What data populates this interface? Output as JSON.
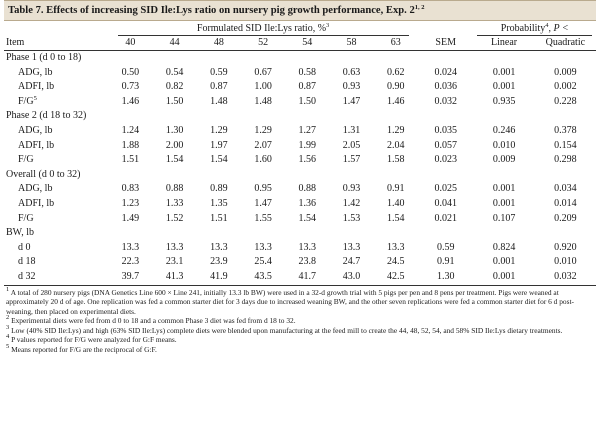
{
  "title": {
    "text": "Table 7. Effects of increasing SID Ile:Lys ratio on nursery pig growth performance, Exp. 2",
    "sup": "1, 2"
  },
  "header": {
    "span_label": "Formulated SID Ile:Lys ratio, %",
    "span_sup": "3",
    "prob_label": "Probability",
    "prob_sup": "4",
    "prob_suffix": ", P <",
    "item": "Item",
    "ratios": [
      "40",
      "44",
      "48",
      "52",
      "54",
      "58",
      "63"
    ],
    "sem": "SEM",
    "linear": "Linear",
    "quadratic": "Quadratic"
  },
  "groups": [
    {
      "label": "Phase 1 (d 0 to 18)",
      "rows": [
        {
          "item": "ADG, lb",
          "sup": "",
          "values": [
            "0.50",
            "0.54",
            "0.59",
            "0.67",
            "0.58",
            "0.63",
            "0.62"
          ],
          "sem": "0.024",
          "linear": "0.001",
          "quadratic": "0.009"
        },
        {
          "item": "ADFI, lb",
          "sup": "",
          "values": [
            "0.73",
            "0.82",
            "0.87",
            "1.00",
            "0.87",
            "0.93",
            "0.90"
          ],
          "sem": "0.036",
          "linear": "0.001",
          "quadratic": "0.002"
        },
        {
          "item": "F/G",
          "sup": "5",
          "values": [
            "1.46",
            "1.50",
            "1.48",
            "1.48",
            "1.50",
            "1.47",
            "1.46"
          ],
          "sem": "0.032",
          "linear": "0.935",
          "quadratic": "0.228"
        }
      ]
    },
    {
      "label": "Phase 2 (d 18 to 32)",
      "rows": [
        {
          "item": "ADG, lb",
          "sup": "",
          "values": [
            "1.24",
            "1.30",
            "1.29",
            "1.29",
            "1.27",
            "1.31",
            "1.29"
          ],
          "sem": "0.035",
          "linear": "0.246",
          "quadratic": "0.378"
        },
        {
          "item": "ADFI, lb",
          "sup": "",
          "values": [
            "1.88",
            "2.00",
            "1.97",
            "2.07",
            "1.99",
            "2.05",
            "2.04"
          ],
          "sem": "0.057",
          "linear": "0.010",
          "quadratic": "0.154"
        },
        {
          "item": "F/G",
          "sup": "",
          "values": [
            "1.51",
            "1.54",
            "1.54",
            "1.60",
            "1.56",
            "1.57",
            "1.58"
          ],
          "sem": "0.023",
          "linear": "0.009",
          "quadratic": "0.298"
        }
      ]
    },
    {
      "label": "Overall (d 0 to 32)",
      "rows": [
        {
          "item": "ADG, lb",
          "sup": "",
          "values": [
            "0.83",
            "0.88",
            "0.89",
            "0.95",
            "0.88",
            "0.93",
            "0.91"
          ],
          "sem": "0.025",
          "linear": "0.001",
          "quadratic": "0.034"
        },
        {
          "item": "ADFI, lb",
          "sup": "",
          "values": [
            "1.23",
            "1.33",
            "1.35",
            "1.47",
            "1.36",
            "1.42",
            "1.40"
          ],
          "sem": "0.041",
          "linear": "0.001",
          "quadratic": "0.014"
        },
        {
          "item": "F/G",
          "sup": "",
          "values": [
            "1.49",
            "1.52",
            "1.51",
            "1.55",
            "1.54",
            "1.53",
            "1.54"
          ],
          "sem": "0.021",
          "linear": "0.107",
          "quadratic": "0.209"
        }
      ]
    },
    {
      "label": "BW, lb",
      "rows": [
        {
          "item": "d 0",
          "sup": "",
          "values": [
            "13.3",
            "13.3",
            "13.3",
            "13.3",
            "13.3",
            "13.3",
            "13.3"
          ],
          "sem": "0.59",
          "linear": "0.824",
          "quadratic": "0.920"
        },
        {
          "item": "d 18",
          "sup": "",
          "values": [
            "22.3",
            "23.1",
            "23.9",
            "25.4",
            "23.8",
            "24.7",
            "24.5"
          ],
          "sem": "0.91",
          "linear": "0.001",
          "quadratic": "0.010"
        },
        {
          "item": "d 32",
          "sup": "",
          "values": [
            "39.7",
            "41.3",
            "41.9",
            "43.5",
            "41.7",
            "43.0",
            "42.5"
          ],
          "sem": "1.30",
          "linear": "0.001",
          "quadratic": "0.032"
        }
      ]
    }
  ],
  "footnotes": [
    {
      "num": "1",
      "text": " A total of 280 nursery pigs (DNA Genetics Line 600 × Line 241, initially 13.3 lb BW) were used in a 32-d growth trial with 5 pigs per pen and 8 pens per treatment. Pigs were weaned at approximately 20 d of age. One replication was fed a common starter diet for 3 days due to increased weaning BW, and the other seven replications were fed a common starter diet for 6 d post-weaning, then placed on experimental diets."
    },
    {
      "num": "2",
      "text": " Experimental diets were fed from d 0 to 18 and a common Phase 3 diet was fed from d 18 to 32."
    },
    {
      "num": "3",
      "text": " Low (40% SID Ile:Lys) and high (63% SID Ile:Lys) complete diets were blended upon manufacturing at the feed mill to create the 44, 48, 52, 54, and 58% SID Ile:Lys dietary treatments."
    },
    {
      "num": "4",
      "text": " P values reported for F/G were analyzed for G:F means."
    },
    {
      "num": "5",
      "text": " Means reported for F/G are the reciprocal of G:F."
    }
  ]
}
